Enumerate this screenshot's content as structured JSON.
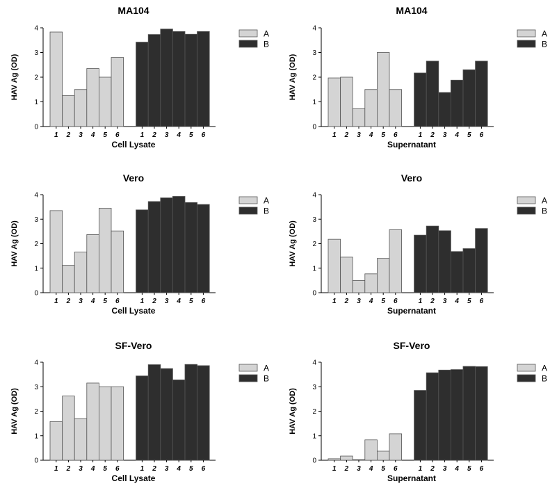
{
  "colors": {
    "A": "#d4d4d4",
    "B": "#2e2e2e",
    "axis": "#000000"
  },
  "legend": [
    "A",
    "B"
  ],
  "chart_data": [
    {
      "type": "bar",
      "title": "MA104",
      "xlabel": "Cell Lysate",
      "ylabel": "HAV Ag (OD)",
      "ylim": [
        0,
        4
      ],
      "yticks": [
        0,
        1,
        2,
        3,
        4
      ],
      "legend_position": "top-right",
      "categories": [
        "1",
        "2",
        "3",
        "4",
        "5",
        "6"
      ],
      "series": [
        {
          "name": "A",
          "values": [
            3.83,
            1.25,
            1.5,
            2.35,
            2.0,
            2.8
          ]
        },
        {
          "name": "B",
          "values": [
            3.42,
            3.73,
            3.95,
            3.85,
            3.74,
            3.85
          ]
        }
      ]
    },
    {
      "type": "bar",
      "title": "MA104",
      "xlabel": "Supernatant",
      "ylabel": "HAV Ag (OD)",
      "ylim": [
        0,
        4
      ],
      "yticks": [
        0,
        1,
        2,
        3,
        4
      ],
      "legend_position": "top-right",
      "categories": [
        "1",
        "2",
        "3",
        "4",
        "5",
        "6"
      ],
      "series": [
        {
          "name": "A",
          "values": [
            1.97,
            2.0,
            0.72,
            1.5,
            3.0,
            1.5
          ]
        },
        {
          "name": "B",
          "values": [
            2.17,
            2.65,
            1.38,
            1.88,
            2.3,
            2.65
          ]
        }
      ]
    },
    {
      "type": "bar",
      "title": "Vero",
      "xlabel": "Cell Lysate",
      "ylabel": "HAV Ag (OD)",
      "ylim": [
        0,
        4
      ],
      "yticks": [
        0,
        1,
        2,
        3,
        4
      ],
      "legend_position": "top-right",
      "categories": [
        "1",
        "2",
        "3",
        "4",
        "5",
        "6"
      ],
      "series": [
        {
          "name": "A",
          "values": [
            3.35,
            1.12,
            1.66,
            2.37,
            3.45,
            2.52
          ]
        },
        {
          "name": "B",
          "values": [
            3.38,
            3.72,
            3.87,
            3.93,
            3.68,
            3.6
          ]
        }
      ]
    },
    {
      "type": "bar",
      "title": "Vero",
      "xlabel": "Supernatant",
      "ylabel": "HAV Ag (OD)",
      "ylim": [
        0,
        4
      ],
      "yticks": [
        0,
        1,
        2,
        3,
        4
      ],
      "legend_position": "top-right",
      "categories": [
        "1",
        "2",
        "3",
        "4",
        "5",
        "6"
      ],
      "series": [
        {
          "name": "A",
          "values": [
            2.18,
            1.45,
            0.5,
            0.77,
            1.4,
            2.57
          ]
        },
        {
          "name": "B",
          "values": [
            2.35,
            2.72,
            2.53,
            1.68,
            1.8,
            2.62
          ]
        }
      ]
    },
    {
      "type": "bar",
      "title": "SF-Vero",
      "xlabel": "Cell Lysate",
      "ylabel": "HAV Ag (OD)",
      "ylim": [
        0,
        4
      ],
      "yticks": [
        0,
        1,
        2,
        3,
        4
      ],
      "legend_position": "top-right",
      "categories": [
        "1",
        "2",
        "3",
        "4",
        "5",
        "6"
      ],
      "series": [
        {
          "name": "A",
          "values": [
            1.58,
            2.62,
            1.7,
            3.15,
            3.0,
            3.0
          ]
        },
        {
          "name": "B",
          "values": [
            3.44,
            3.9,
            3.74,
            3.28,
            3.91,
            3.86
          ]
        }
      ]
    },
    {
      "type": "bar",
      "title": "SF-Vero",
      "xlabel": "Supernatant",
      "ylabel": "HAV Ag (OD)",
      "ylim": [
        0,
        4
      ],
      "yticks": [
        0,
        1,
        2,
        3,
        4
      ],
      "legend_position": "top-right",
      "categories": [
        "1",
        "2",
        "3",
        "4",
        "5",
        "6"
      ],
      "series": [
        {
          "name": "A",
          "values": [
            0.06,
            0.17,
            0.03,
            0.83,
            0.37,
            1.08
          ]
        },
        {
          "name": "B",
          "values": [
            2.85,
            3.57,
            3.68,
            3.7,
            3.83,
            3.82
          ]
        }
      ]
    }
  ]
}
